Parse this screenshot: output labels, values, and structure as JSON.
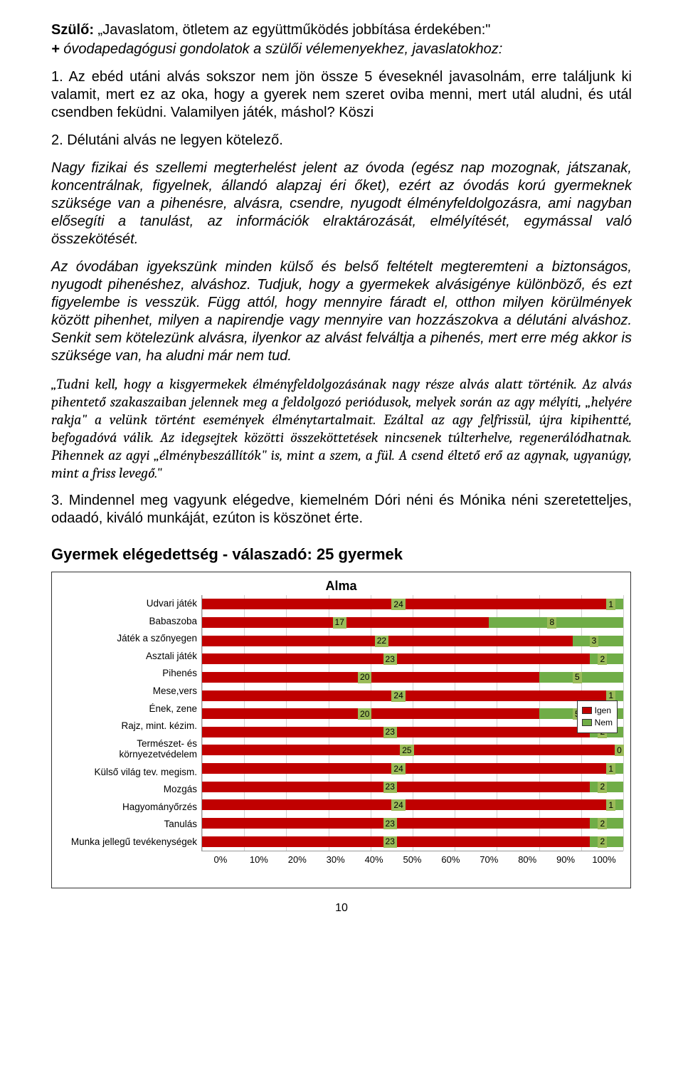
{
  "header": {
    "lead_bold": "Szülő: ",
    "lead_text": "„Javaslatom, ötletem az együttműködés jobbítása érdekében:\"",
    "sub_prefix": " + ",
    "sub_italic": "óvodapedagógusi gondolatok a szülői vélemenyekhez, javaslatokhoz:"
  },
  "item1": {
    "text": "1. Az ebéd utáni alvás sokszor nem jön össze 5 éveseknél javasolnám, erre találjunk ki valamit, mert ez az oka, hogy a gyerek nem szeret oviba menni, mert utál aludni, és utál csendben feküdni. Valamilyen játék, máshol? Köszi"
  },
  "item2": {
    "text": "2. Délutáni alvás ne legyen kötelező."
  },
  "response1": {
    "p1": "Nagy fizikai és szellemi megterhelést jelent az óvoda (egész nap mozognak, játszanak, koncentrálnak, figyelnek, állandó alapzaj éri őket), ezért az óvodás korú gyermeknek szüksége van a pihenésre, alvásra, csendre, nyugodt élményfeldolgozásra, ami nagyban elősegíti a tanulást, az információk elraktározását, elmélyítését, egymással való összekötését.",
    "p2": "Az óvodában igyekszünk minden külső és belső feltételt megteremteni a biztonságos, nyugodt pihenéshez, alváshoz. Tudjuk, hogy a gyermekek alvásigénye különböző, és ezt figyelembe is vesszük. Függ attól, hogy mennyire fáradt el, otthon milyen körülmények között pihenhet, milyen a napirendje vagy mennyire van hozzászokva a délutáni alváshoz. Senkit sem kötelezünk alvásra, ilyenkor az alvást felváltja a pihenés, mert erre még akkor is szüksége van, ha aludni már nem tud."
  },
  "quote": {
    "text": "„Tudni kell, hogy a kisgyermekek élményfeldolgozásának nagy része alvás alatt történik. Az alvás pihentető szakaszaiban jelennek meg a feldolgozó periódusok, melyek során az agy mélyíti, „helyére rakja\" a velünk történt események élménytartalmait. Ezáltal az agy felfrissül, újra kipihentté, befogadóvá válik. Az idegsejtek közötti összeköttetések nincsenek túlterhelve, regenerálódhatnak. Pihennek az agyi „élménybeszállítók\" is, mint a szem, a fül. A csend éltető erő az agynak, ugyanúgy, mint a friss levegő.\""
  },
  "item3": {
    "text": "3. Mindennel meg vagyunk elégedve, kiemelném Dóri néni és Mónika néni szeretetteljes, odaadó, kiváló munkáját, ezúton is köszönet érte."
  },
  "section_heading": "Gyermek elégedettség  - válaszadó: 25 gyermek",
  "chart": {
    "title": "Alma",
    "type": "stacked-bar-horizontal",
    "total": 25,
    "colors": {
      "igen": "#c00000",
      "nem": "#70ad47",
      "grid": "#d0d0d0",
      "border": "#333333",
      "label_bg": "#9bbb59"
    },
    "categories": [
      {
        "label": "Udvari játék",
        "igen": 24,
        "nem": 1
      },
      {
        "label": "Babaszoba",
        "igen": 17,
        "nem": 8
      },
      {
        "label": "Játék a szőnyegen",
        "igen": 22,
        "nem": 3
      },
      {
        "label": "Asztali játék",
        "igen": 23,
        "nem": 2
      },
      {
        "label": "Pihenés",
        "igen": 20,
        "nem": 5
      },
      {
        "label": "Mese,vers",
        "igen": 24,
        "nem": 1
      },
      {
        "label": "Ének, zene",
        "igen": 20,
        "nem": 5
      },
      {
        "label": "Rajz, mint. kézim.",
        "igen": 23,
        "nem": 2
      },
      {
        "label": "Természet- és környezetvédelem",
        "igen": 25,
        "nem": 0
      },
      {
        "label": "Külső világ tev. megism.",
        "igen": 24,
        "nem": 1
      },
      {
        "label": "Mozgás",
        "igen": 23,
        "nem": 2
      },
      {
        "label": "Hagyományőrzés",
        "igen": 24,
        "nem": 1
      },
      {
        "label": "Tanulás",
        "igen": 23,
        "nem": 2
      },
      {
        "label": "Munka jellegű tevékenységek",
        "igen": 23,
        "nem": 2
      }
    ],
    "xticks": [
      "0%",
      "10%",
      "20%",
      "30%",
      "40%",
      "50%",
      "60%",
      "70%",
      "80%",
      "90%",
      "100%"
    ],
    "legend": [
      {
        "label": "Igen",
        "color": "#c00000"
      },
      {
        "label": "Nem",
        "color": "#70ad47"
      }
    ]
  },
  "page_number": "10"
}
